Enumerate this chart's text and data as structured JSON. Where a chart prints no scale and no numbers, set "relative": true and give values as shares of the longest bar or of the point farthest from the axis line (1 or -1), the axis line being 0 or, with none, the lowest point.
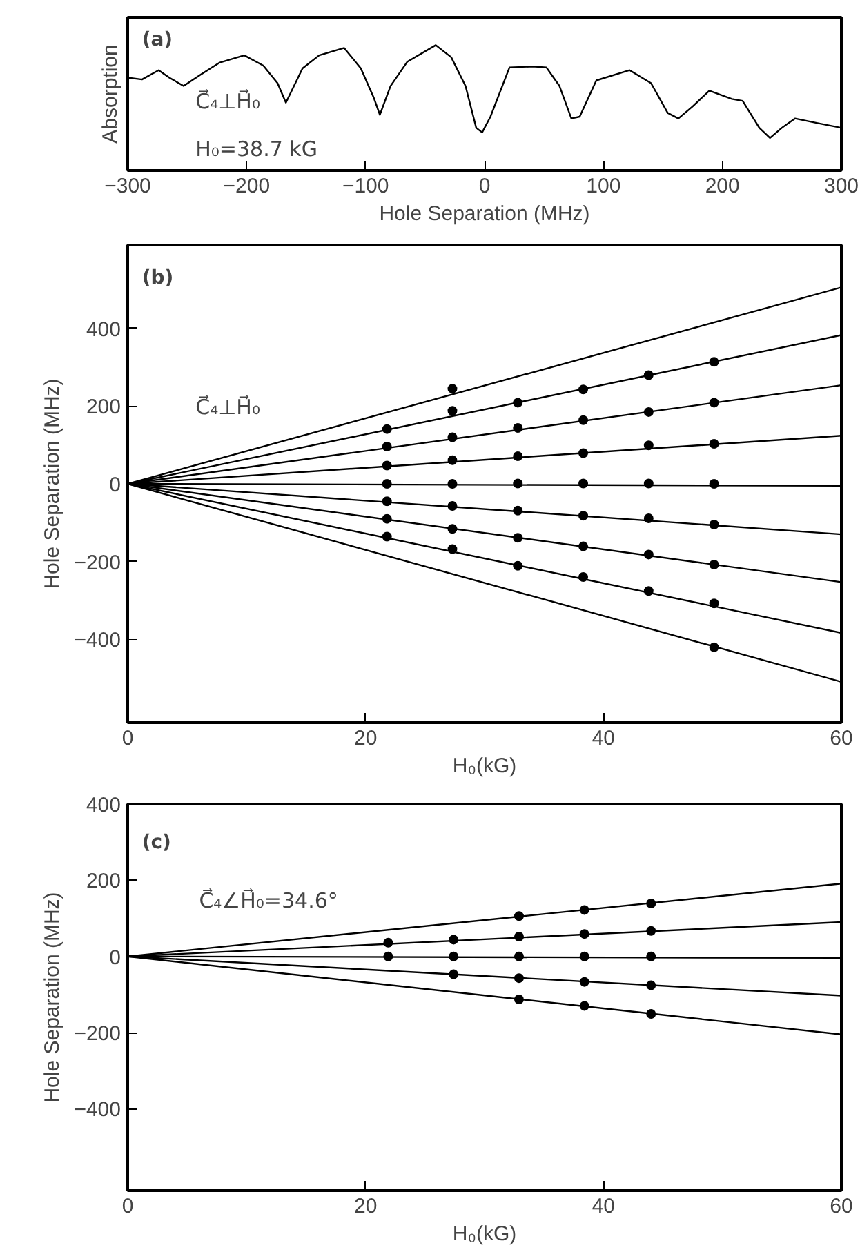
{
  "chart_data": [
    {
      "type": "line",
      "relative": true,
      "xlabel": "Hole Separation (MHz)",
      "ylabel": "Absorption",
      "xlim": [
        -300,
        300
      ],
      "xticks": [
        -300,
        -200,
        -100,
        0,
        100,
        200,
        300
      ],
      "tick_labels": "x",
      "annotations": [
        "(a)",
        "C⃗₄⊥H⃗₀",
        "H₀=38.7 kG"
      ],
      "series": [
        {
          "color": "#000000",
          "x": [
            -300,
            -288,
            -274,
            -265,
            -253,
            -239,
            -223,
            -202,
            -186,
            -174,
            -167,
            -153,
            -139,
            -118,
            -104,
            -93,
            -88,
            -79,
            -65,
            -41,
            -28,
            -16,
            -7,
            -2,
            5,
            21,
            40,
            52,
            63,
            73,
            80,
            94,
            122,
            140,
            154,
            163,
            175,
            189,
            208,
            217,
            231,
            240,
            250,
            261,
            280,
            300
          ],
          "values": [
            0.65,
            0.63,
            0.73,
            0.65,
            0.56,
            0.68,
            0.81,
            0.89,
            0.78,
            0.59,
            0.38,
            0.75,
            0.89,
            0.97,
            0.75,
            0.43,
            0.25,
            0.56,
            0.82,
            1.0,
            0.87,
            0.56,
            0.11,
            0.06,
            0.23,
            0.76,
            0.77,
            0.76,
            0.56,
            0.21,
            0.23,
            0.62,
            0.73,
            0.59,
            0.27,
            0.21,
            0.34,
            0.51,
            0.42,
            0.4,
            0.11,
            0.0,
            0.11,
            0.21,
            0.16,
            0.11
          ]
        }
      ]
    },
    {
      "type": "line",
      "xlabel": "H₀(kG)",
      "ylabel": "Hole Separation (MHz)",
      "xlim": [
        0,
        60
      ],
      "xticks": [
        0,
        20,
        40,
        60
      ],
      "ylim": [
        -615,
        615
      ],
      "yticks": [
        -400,
        -200,
        0,
        200,
        400
      ],
      "annotations": [
        "(b)",
        "C⃗₄⊥H⃗₀"
      ],
      "series": [
        {
          "color": "#000000",
          "x": [
            0,
            60
          ],
          "values": [
            0,
            506
          ]
        },
        {
          "color": "#000000",
          "x": [
            0,
            60
          ],
          "values": [
            0,
            383
          ]
        },
        {
          "color": "#000000",
          "x": [
            0,
            60
          ],
          "values": [
            0,
            254
          ]
        },
        {
          "color": "#000000",
          "x": [
            0,
            60
          ],
          "values": [
            0,
            124
          ]
        },
        {
          "color": "#000000",
          "x": [
            0,
            60
          ],
          "values": [
            0,
            -5
          ]
        },
        {
          "color": "#000000",
          "x": [
            0,
            60
          ],
          "values": [
            0,
            -130
          ]
        },
        {
          "color": "#000000",
          "x": [
            0,
            60
          ],
          "values": [
            0,
            -253
          ]
        },
        {
          "color": "#000000",
          "x": [
            0,
            60
          ],
          "values": [
            0,
            -384
          ]
        },
        {
          "color": "#000000",
          "x": [
            0,
            60
          ],
          "values": [
            0,
            -510
          ]
        },
        {
          "type": "scatter",
          "marker": "circle",
          "color": "#000000",
          "x": [
            21.8,
            21.8,
            21.8,
            21.8,
            21.8,
            21.8,
            21.8,
            27.3,
            27.3,
            27.3,
            27.3,
            27.3,
            27.3,
            27.3,
            27.3,
            32.8,
            32.8,
            32.8,
            32.8,
            32.8,
            32.8,
            32.8,
            38.3,
            38.3,
            38.3,
            38.3,
            38.3,
            38.3,
            38.3,
            43.8,
            43.8,
            43.8,
            43.8,
            43.8,
            43.8,
            43.8,
            49.3,
            49.3,
            49.3,
            49.3,
            49.3,
            49.3,
            49.3,
            49.3
          ],
          "values": [
            141,
            96,
            47,
            0,
            -45,
            -90,
            -136,
            245,
            188,
            120,
            61,
            0,
            -57,
            -116,
            -168,
            209,
            144,
            71,
            1,
            -69,
            -139,
            -211,
            243,
            164,
            79,
            1,
            -82,
            -161,
            -240,
            280,
            185,
            99,
            1,
            -89,
            -182,
            -276,
            314,
            209,
            103,
            0,
            -105,
            -208,
            -308,
            -421
          ]
        }
      ]
    },
    {
      "type": "line",
      "xlabel": "H₀(kG)",
      "ylabel": "Hole Separation (MHz)",
      "xlim": [
        0,
        60
      ],
      "xticks": [
        0,
        20,
        40,
        60
      ],
      "ylim": [
        -615,
        400
      ],
      "yticks": [
        -400,
        -200,
        0,
        200,
        400
      ],
      "annotations": [
        "(c)",
        "C⃗₄∠H⃗₀=34.6°"
      ],
      "series": [
        {
          "color": "#000000",
          "x": [
            0,
            60
          ],
          "values": [
            0,
            191
          ]
        },
        {
          "color": "#000000",
          "x": [
            0,
            60
          ],
          "values": [
            0,
            90
          ]
        },
        {
          "color": "#000000",
          "x": [
            0,
            60
          ],
          "values": [
            0,
            -4
          ]
        },
        {
          "color": "#000000",
          "x": [
            0,
            60
          ],
          "values": [
            0,
            -103
          ]
        },
        {
          "color": "#000000",
          "x": [
            0,
            60
          ],
          "values": [
            0,
            -205
          ]
        },
        {
          "type": "scatter",
          "marker": "circle",
          "color": "#000000",
          "x": [
            21.9,
            21.9,
            27.4,
            27.4,
            27.4,
            32.9,
            32.9,
            32.9,
            32.9,
            32.9,
            38.4,
            38.4,
            38.4,
            38.4,
            38.4,
            44.0,
            44.0,
            44.0,
            44.0,
            44.0
          ],
          "values": [
            36,
            0,
            44,
            0,
            -47,
            106,
            52,
            0,
            -57,
            -113,
            122,
            59,
            0,
            -67,
            -130,
            139,
            67,
            0,
            -76,
            -151
          ]
        }
      ]
    }
  ]
}
